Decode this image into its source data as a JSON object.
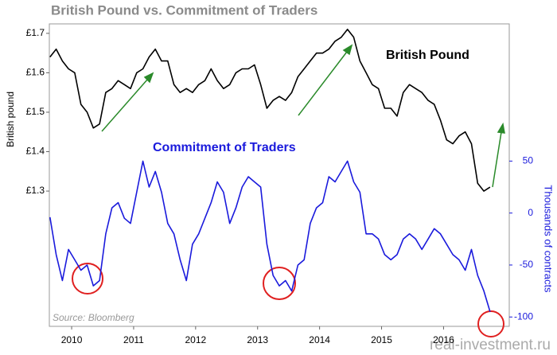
{
  "chart_data": {
    "type": "line",
    "title": "British Pound vs. Commitment of Traders",
    "ylabel": "British pound",
    "y2label": "Thousands of contracts",
    "source": "Source: Bloomberg",
    "watermark": "real-investment.ru",
    "x": [
      2009.65,
      2009.75,
      2009.85,
      2009.95,
      2010.05,
      2010.15,
      2010.25,
      2010.35,
      2010.45,
      2010.55,
      2010.65,
      2010.75,
      2010.85,
      2010.95,
      2011.05,
      2011.15,
      2011.25,
      2011.35,
      2011.45,
      2011.55,
      2011.65,
      2011.75,
      2011.85,
      2011.95,
      2012.05,
      2012.15,
      2012.25,
      2012.35,
      2012.45,
      2012.55,
      2012.65,
      2012.75,
      2012.85,
      2012.95,
      2013.05,
      2013.15,
      2013.25,
      2013.35,
      2013.45,
      2013.55,
      2013.65,
      2013.75,
      2013.85,
      2013.95,
      2014.05,
      2014.15,
      2014.25,
      2014.35,
      2014.45,
      2014.55,
      2014.65,
      2014.75,
      2014.85,
      2014.95,
      2015.05,
      2015.15,
      2015.25,
      2015.35,
      2015.45,
      2015.55,
      2015.65,
      2015.75,
      2015.85,
      2015.95,
      2016.05,
      2016.15,
      2016.25,
      2016.35,
      2016.45,
      2016.55,
      2016.65,
      2016.75
    ],
    "series": [
      {
        "name": "British Pound",
        "color": "#000000",
        "axis": "y",
        "values": [
          1.64,
          1.66,
          1.63,
          1.61,
          1.6,
          1.52,
          1.5,
          1.46,
          1.47,
          1.55,
          1.56,
          1.58,
          1.57,
          1.56,
          1.6,
          1.61,
          1.64,
          1.66,
          1.63,
          1.63,
          1.57,
          1.55,
          1.56,
          1.55,
          1.57,
          1.58,
          1.61,
          1.58,
          1.56,
          1.57,
          1.6,
          1.61,
          1.61,
          1.62,
          1.57,
          1.51,
          1.53,
          1.54,
          1.53,
          1.55,
          1.59,
          1.61,
          1.63,
          1.65,
          1.65,
          1.66,
          1.68,
          1.69,
          1.71,
          1.69,
          1.63,
          1.6,
          1.57,
          1.56,
          1.51,
          1.51,
          1.49,
          1.55,
          1.57,
          1.56,
          1.55,
          1.53,
          1.52,
          1.48,
          1.43,
          1.42,
          1.44,
          1.45,
          1.42,
          1.32,
          1.3,
          1.31
        ]
      },
      {
        "name": "Commitment of Traders",
        "color": "#1a1adc",
        "axis": "y2",
        "values": [
          -4,
          -40,
          -65,
          -35,
          -45,
          -55,
          -50,
          -70,
          -65,
          -20,
          5,
          10,
          -5,
          -10,
          20,
          50,
          25,
          40,
          20,
          -10,
          -20,
          -45,
          -65,
          -30,
          -20,
          -5,
          10,
          30,
          20,
          -10,
          5,
          25,
          35,
          30,
          25,
          -30,
          -60,
          -70,
          -65,
          -75,
          -50,
          -45,
          -10,
          5,
          10,
          35,
          30,
          40,
          50,
          30,
          20,
          -20,
          -20,
          -25,
          -40,
          -45,
          -40,
          -25,
          -20,
          -25,
          -35,
          -25,
          -15,
          -20,
          -30,
          -40,
          -45,
          -55,
          -35,
          -60,
          -75,
          -95
        ]
      }
    ],
    "xlim": [
      2009.64,
      2017.06
    ],
    "xticks": [
      2010,
      2011,
      2012,
      2013,
      2014,
      2015,
      2016
    ],
    "ylim": [
      0.957,
      1.724
    ],
    "yticks": [
      {
        "value": 1.3,
        "label": "£1.3"
      },
      {
        "value": 1.4,
        "label": "£1.4"
      },
      {
        "value": 1.5,
        "label": "£1.5"
      },
      {
        "value": 1.6,
        "label": "£1.6"
      },
      {
        "value": 1.7,
        "label": "£1.7"
      }
    ],
    "y2lim": [
      -109,
      182
    ],
    "y2ticks": [
      -100,
      -50,
      0,
      50
    ]
  }
}
